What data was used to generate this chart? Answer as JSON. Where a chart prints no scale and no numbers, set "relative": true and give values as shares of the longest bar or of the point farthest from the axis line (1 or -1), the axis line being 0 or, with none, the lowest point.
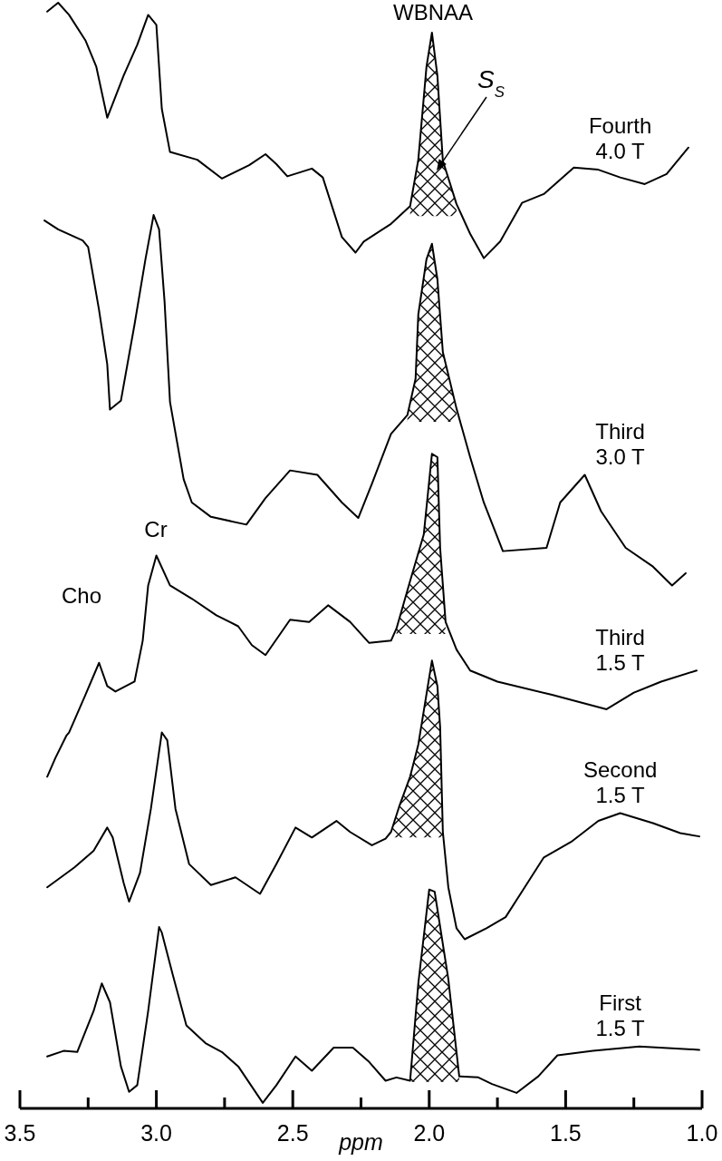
{
  "chart_data": {
    "type": "line",
    "relative": true,
    "xlabel": "ppm",
    "xlim": [
      3.5,
      1.0
    ],
    "xticks": [
      3.5,
      {
        "value": 3.25,
        "label": null
      },
      {
        "value": 3,
        "label": "3.0"
      },
      {
        "value": 2.75,
        "label": null
      },
      2.5,
      {
        "value": 2.25,
        "label": null
      },
      {
        "value": 2,
        "label": "2.0"
      },
      {
        "value": 1.75,
        "label": null
      },
      1.5,
      {
        "value": 1.25,
        "label": null
      },
      {
        "value": 1,
        "label": "1.0"
      }
    ],
    "legend": false,
    "grid": false,
    "line_style": "solid",
    "series": [
      {
        "name": "Fourth 4.0 T",
        "color": "#000000",
        "x": [
          3.4,
          3.36,
          3.32,
          3.26,
          3.22,
          3.18,
          3.12,
          3.07,
          3.03,
          3.0,
          2.98,
          2.95,
          2.85,
          2.76,
          2.66,
          2.6,
          2.56,
          2.52,
          2.43,
          2.39,
          2.32,
          2.27,
          2.24,
          2.14,
          2.07,
          2.04,
          2.01,
          1.99,
          1.97,
          1.95,
          1.9,
          1.85,
          1.8,
          1.74,
          1.66,
          1.58,
          1.47,
          1.38,
          1.3,
          1.21,
          1.13,
          1.05
        ],
        "values": [
          0.992,
          1.0,
          0.989,
          0.966,
          0.942,
          0.896,
          0.934,
          0.962,
          0.989,
          0.98,
          0.904,
          0.865,
          0.858,
          0.841,
          0.853,
          0.863,
          0.854,
          0.843,
          0.85,
          0.842,
          0.788,
          0.774,
          0.784,
          0.8,
          0.816,
          0.858,
          0.942,
          0.973,
          0.934,
          0.857,
          0.818,
          0.791,
          0.769,
          0.784,
          0.819,
          0.827,
          0.851,
          0.849,
          0.842,
          0.836,
          0.845,
          0.869
        ],
        "lower": [
          null,
          null,
          null,
          null,
          null,
          null,
          null,
          null,
          null,
          null,
          null,
          null,
          null,
          null,
          null,
          null,
          null,
          null,
          null,
          null,
          null,
          null,
          null,
          null,
          0.807,
          0.807,
          0.807,
          0.807,
          0.807,
          0.807,
          0.807,
          null,
          null,
          null,
          null,
          null,
          null,
          null,
          null,
          null,
          null,
          null
        ],
        "upper": [
          null,
          null,
          null,
          null,
          null,
          null,
          null,
          null,
          null,
          null,
          null,
          null,
          null,
          null,
          null,
          null,
          null,
          null,
          null,
          null,
          null,
          null,
          null,
          null,
          0.816,
          0.858,
          0.942,
          0.973,
          0.934,
          0.857,
          0.818,
          null,
          null,
          null,
          null,
          null,
          null,
          null,
          null,
          null,
          null,
          null
        ]
      },
      {
        "name": "Third 3.0 T",
        "color": "#000000",
        "x": [
          3.41,
          3.36,
          3.27,
          3.25,
          3.21,
          3.18,
          3.17,
          3.13,
          3.08,
          3.04,
          3.01,
          2.99,
          2.97,
          2.95,
          2.9,
          2.87,
          2.8,
          2.67,
          2.6,
          2.51,
          2.41,
          2.32,
          2.26,
          2.21,
          2.14,
          2.08,
          2.05,
          2.04,
          2.01,
          1.99,
          1.97,
          1.95,
          1.9,
          1.85,
          1.8,
          1.73,
          1.57,
          1.52,
          1.43,
          1.37,
          1.28,
          1.18,
          1.11,
          1.06
        ],
        "values": [
          0.803,
          0.795,
          0.785,
          0.779,
          0.722,
          0.673,
          0.632,
          0.64,
          0.709,
          0.768,
          0.808,
          0.795,
          0.73,
          0.639,
          0.569,
          0.548,
          0.535,
          0.528,
          0.552,
          0.577,
          0.573,
          0.548,
          0.534,
          0.565,
          0.61,
          0.627,
          0.66,
          0.718,
          0.768,
          0.782,
          0.75,
          0.684,
          0.633,
          0.589,
          0.548,
          0.504,
          0.507,
          0.548,
          0.573,
          0.54,
          0.507,
          0.49,
          0.473,
          0.484
        ],
        "lower": [
          null,
          null,
          null,
          null,
          null,
          null,
          null,
          null,
          null,
          null,
          null,
          null,
          null,
          null,
          null,
          null,
          null,
          null,
          null,
          null,
          null,
          null,
          null,
          null,
          null,
          0.621,
          0.621,
          0.621,
          0.621,
          0.621,
          0.621,
          0.621,
          0.621,
          null,
          null,
          null,
          null,
          null,
          null,
          null,
          null,
          null,
          null,
          null
        ],
        "upper": [
          null,
          null,
          null,
          null,
          null,
          null,
          null,
          null,
          null,
          null,
          null,
          null,
          null,
          null,
          null,
          null,
          null,
          null,
          null,
          null,
          null,
          null,
          null,
          null,
          null,
          0.627,
          0.66,
          0.718,
          0.768,
          0.782,
          0.75,
          0.684,
          0.633,
          null,
          null,
          null,
          null,
          null,
          null,
          null,
          null,
          null,
          null,
          null
        ]
      },
      {
        "name": "Third 1.5 T",
        "color": "#000000",
        "x": [
          3.4,
          3.37,
          3.33,
          3.32,
          3.26,
          3.21,
          3.18,
          3.15,
          3.08,
          3.05,
          3.03,
          3.0,
          2.95,
          2.87,
          2.78,
          2.7,
          2.65,
          2.6,
          2.51,
          2.44,
          2.37,
          2.29,
          2.22,
          2.14,
          2.12,
          2.07,
          2.02,
          1.99,
          1.97,
          1.96,
          1.94,
          1.9,
          1.85,
          1.75,
          1.55,
          1.35,
          1.25,
          1.15,
          1.02
        ],
        "values": [
          0.3,
          0.317,
          0.337,
          0.34,
          0.374,
          0.403,
          0.382,
          0.377,
          0.386,
          0.423,
          0.473,
          0.5,
          0.473,
          0.461,
          0.446,
          0.436,
          0.419,
          0.41,
          0.442,
          0.44,
          0.455,
          0.44,
          0.421,
          0.423,
          0.434,
          0.477,
          0.519,
          0.592,
          0.589,
          0.507,
          0.44,
          0.415,
          0.396,
          0.386,
          0.374,
          0.361,
          0.376,
          0.386,
          0.396
        ],
        "lower": [
          null,
          null,
          null,
          null,
          null,
          null,
          null,
          null,
          null,
          null,
          null,
          null,
          null,
          null,
          null,
          null,
          null,
          null,
          null,
          null,
          null,
          null,
          null,
          null,
          0.429,
          0.429,
          0.429,
          0.429,
          0.429,
          0.429,
          0.429,
          null,
          null,
          null,
          null,
          null,
          null,
          null,
          null
        ],
        "upper": [
          null,
          null,
          null,
          null,
          null,
          null,
          null,
          null,
          null,
          null,
          null,
          null,
          null,
          null,
          null,
          null,
          null,
          null,
          null,
          null,
          null,
          null,
          null,
          null,
          0.434,
          0.477,
          0.519,
          0.592,
          0.589,
          0.507,
          0.44,
          null,
          null,
          null,
          null,
          null,
          null,
          null,
          null
        ]
      },
      {
        "name": "Second 1.5 T",
        "color": "#000000",
        "x": [
          3.4,
          3.3,
          3.23,
          3.18,
          3.16,
          3.12,
          3.1,
          3.06,
          3.02,
          2.98,
          2.96,
          2.93,
          2.88,
          2.8,
          2.71,
          2.62,
          2.56,
          2.49,
          2.43,
          2.34,
          2.29,
          2.21,
          2.16,
          2.14,
          2.11,
          2.07,
          2.04,
          1.99,
          1.97,
          1.96,
          1.95,
          1.93,
          1.9,
          1.87,
          1.79,
          1.72,
          1.65,
          1.58,
          1.48,
          1.38,
          1.3,
          1.18,
          1.08,
          1.01
        ],
        "values": [
          0.2,
          0.218,
          0.233,
          0.254,
          0.245,
          0.204,
          0.187,
          0.213,
          0.271,
          0.34,
          0.333,
          0.271,
          0.221,
          0.202,
          0.209,
          0.194,
          0.221,
          0.254,
          0.245,
          0.26,
          0.25,
          0.238,
          0.244,
          0.25,
          0.273,
          0.3,
          0.329,
          0.405,
          0.382,
          0.345,
          0.25,
          0.2,
          0.163,
          0.153,
          0.163,
          0.173,
          0.2,
          0.227,
          0.241,
          0.26,
          0.267,
          0.258,
          0.249,
          0.246
        ],
        "lower": [
          null,
          null,
          null,
          null,
          null,
          null,
          null,
          null,
          null,
          null,
          null,
          null,
          null,
          null,
          null,
          null,
          null,
          null,
          null,
          null,
          null,
          null,
          null,
          0.245,
          0.245,
          0.245,
          0.245,
          0.245,
          0.245,
          0.245,
          0.245,
          null,
          null,
          null,
          null,
          null,
          null,
          null,
          null,
          null,
          null,
          null,
          null,
          null
        ],
        "upper": [
          null,
          null,
          null,
          null,
          null,
          null,
          null,
          null,
          null,
          null,
          null,
          null,
          null,
          null,
          null,
          null,
          null,
          null,
          null,
          null,
          null,
          null,
          null,
          0.25,
          0.273,
          0.3,
          0.329,
          0.405,
          0.382,
          0.345,
          0.25,
          null,
          null,
          null,
          null,
          null,
          null,
          null,
          null,
          null,
          null,
          null,
          null,
          null
        ]
      },
      {
        "name": "First 1.5 T",
        "color": "#000000",
        "x": [
          3.4,
          3.34,
          3.29,
          3.23,
          3.2,
          3.17,
          3.13,
          3.1,
          3.07,
          3.03,
          2.99,
          2.98,
          2.94,
          2.89,
          2.82,
          2.76,
          2.7,
          2.61,
          2.56,
          2.49,
          2.43,
          2.35,
          2.28,
          2.22,
          2.16,
          2.12,
          2.07,
          2.04,
          2.0,
          1.98,
          1.93,
          1.89,
          1.82,
          1.77,
          1.68,
          1.6,
          1.53,
          1.4,
          1.23,
          1.01
        ],
        "values": [
          0.047,
          0.052,
          0.051,
          0.088,
          0.113,
          0.096,
          0.038,
          0.015,
          0.021,
          0.088,
          0.164,
          0.159,
          0.121,
          0.075,
          0.059,
          0.051,
          0.038,
          0.005,
          0.021,
          0.047,
          0.034,
          0.055,
          0.055,
          0.042,
          0.025,
          0.028,
          0.025,
          0.113,
          0.198,
          0.196,
          0.117,
          0.029,
          0.028,
          0.022,
          0.014,
          0.029,
          0.048,
          0.052,
          0.056,
          0.053
        ],
        "lower": [
          null,
          null,
          null,
          null,
          null,
          null,
          null,
          null,
          null,
          null,
          null,
          null,
          null,
          null,
          null,
          null,
          null,
          null,
          null,
          null,
          null,
          null,
          null,
          null,
          null,
          null,
          0.024,
          0.024,
          0.024,
          0.024,
          0.024,
          0.024,
          null,
          null,
          null,
          null,
          null,
          null,
          null,
          null
        ],
        "upper": [
          null,
          null,
          null,
          null,
          null,
          null,
          null,
          null,
          null,
          null,
          null,
          null,
          null,
          null,
          null,
          null,
          null,
          null,
          null,
          null,
          null,
          null,
          null,
          null,
          null,
          null,
          0.025,
          0.113,
          0.198,
          0.196,
          0.117,
          0.029,
          null,
          null,
          null,
          null,
          null,
          null,
          null,
          null
        ]
      }
    ],
    "annotations": [
      "WBNAA",
      "Cr",
      "Cho",
      "S$_{S}$"
    ]
  }
}
